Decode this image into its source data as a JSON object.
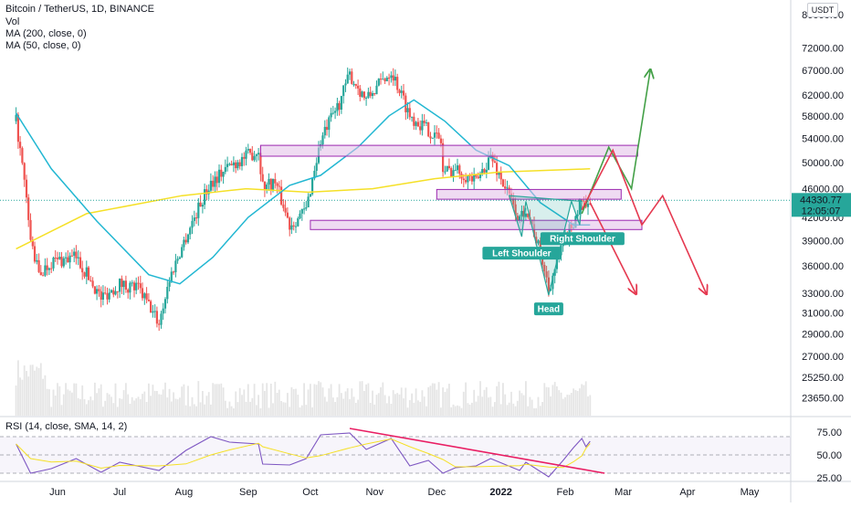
{
  "header": {
    "title": "Bitcoin / TetherUS, 1D, BINANCE",
    "vol": "Vol",
    "ma200": "MA (200, close, 0)",
    "ma50": "MA (50, close, 0)",
    "rsi": "RSI (14, close, SMA, 14, 2)",
    "currency": "USDT"
  },
  "price_badge": {
    "price": "44330.77",
    "countdown": "12:05:07"
  },
  "colors": {
    "up": "#26a69a",
    "down": "#ef5350",
    "ma50": "#22b7d2",
    "ma200": "#f5e027",
    "zone_fill": "#e1bee7",
    "zone_stroke": "#9c27b0",
    "bull_path": "#43a047",
    "bear_path": "#e53950",
    "pattern_fill": "#26a69a",
    "rsi_line": "#7e57c2",
    "rsi_trend": "#e91e63"
  },
  "pattern_labels": {
    "left_shoulder": "Left Shoulder",
    "head": "Head",
    "right_shoulder": "Right Shoulder"
  },
  "chart_data": {
    "type": "candlestick",
    "title": "Bitcoin / TetherUS, 1D, BINANCE",
    "price_axis": {
      "scale": "log",
      "ticks": [
        {
          "v": 80000,
          "label": "80000.00"
        },
        {
          "v": 72000,
          "label": "72000.00"
        },
        {
          "v": 67000,
          "label": "67000.00"
        },
        {
          "v": 62000,
          "label": "62000.00"
        },
        {
          "v": 58000,
          "label": "58000.00"
        },
        {
          "v": 54000,
          "label": "54000.00"
        },
        {
          "v": 50000,
          "label": "50000.00"
        },
        {
          "v": 46000,
          "label": "46000.00"
        },
        {
          "v": 42000,
          "label": "42000.00"
        },
        {
          "v": 39000,
          "label": "39000.00"
        },
        {
          "v": 36000,
          "label": "36000.00"
        },
        {
          "v": 33000,
          "label": "33000.00"
        },
        {
          "v": 31000,
          "label": "31000.00"
        },
        {
          "v": 29000,
          "label": "29000.00"
        },
        {
          "v": 27000,
          "label": "27000.00"
        },
        {
          "v": 25250,
          "label": "25250.00"
        },
        {
          "v": 23650,
          "label": "23650.00"
        }
      ]
    },
    "time_axis": {
      "ticks": [
        {
          "date": "2021-06-01",
          "label": "Jun"
        },
        {
          "date": "2021-07-01",
          "label": "Jul"
        },
        {
          "date": "2021-08-01",
          "label": "Aug"
        },
        {
          "date": "2021-09-01",
          "label": "Sep"
        },
        {
          "date": "2021-10-01",
          "label": "Oct"
        },
        {
          "date": "2021-11-01",
          "label": "Nov"
        },
        {
          "date": "2021-12-01",
          "label": "Dec"
        },
        {
          "date": "2022-01-01",
          "label": "2022"
        },
        {
          "date": "2022-02-01",
          "label": "Feb"
        },
        {
          "date": "2022-03-01",
          "label": "Mar"
        },
        {
          "date": "2022-04-01",
          "label": "Apr"
        },
        {
          "date": "2022-05-01",
          "label": "May"
        }
      ]
    },
    "last_price": 44330.77,
    "price_path": [
      [
        "2021-05-12",
        57000
      ],
      [
        "2021-05-19",
        39000
      ],
      [
        "2021-05-23",
        35000
      ],
      [
        "2021-05-29",
        36500
      ],
      [
        "2021-06-10",
        37000
      ],
      [
        "2021-06-22",
        32500
      ],
      [
        "2021-07-01",
        34000
      ],
      [
        "2021-07-10",
        33500
      ],
      [
        "2021-07-20",
        30000
      ],
      [
        "2021-07-25",
        34500
      ],
      [
        "2021-08-02",
        39500
      ],
      [
        "2021-08-14",
        47000
      ],
      [
        "2021-08-23",
        49500
      ],
      [
        "2021-09-06",
        52000
      ],
      [
        "2021-09-08",
        46500
      ],
      [
        "2021-09-14",
        47000
      ],
      [
        "2021-09-21",
        41000
      ],
      [
        "2021-09-29",
        43000
      ],
      [
        "2021-10-06",
        53500
      ],
      [
        "2021-10-15",
        60500
      ],
      [
        "2021-10-20",
        66000
      ],
      [
        "2021-10-28",
        61000
      ],
      [
        "2021-11-09",
        67000
      ],
      [
        "2021-11-18",
        58000
      ],
      [
        "2021-11-27",
        55500
      ],
      [
        "2021-12-03",
        53500
      ],
      [
        "2021-12-04",
        48500
      ],
      [
        "2021-12-10",
        49000
      ],
      [
        "2021-12-20",
        47000
      ],
      [
        "2021-12-27",
        51000
      ],
      [
        "2022-01-01",
        47500
      ],
      [
        "2022-01-10",
        41500
      ],
      [
        "2022-01-13",
        43500
      ],
      [
        "2022-01-21",
        36500
      ],
      [
        "2022-01-24",
        33500
      ],
      [
        "2022-01-31",
        38500
      ],
      [
        "2022-02-05",
        41500
      ],
      [
        "2022-02-09",
        44500
      ],
      [
        "2022-02-11",
        42500
      ],
      [
        "2022-02-13",
        44330.77
      ]
    ],
    "ma50": [
      [
        "2021-05-12",
        58500
      ],
      [
        "2021-05-29",
        49000
      ],
      [
        "2021-06-20",
        41500
      ],
      [
        "2021-07-15",
        35000
      ],
      [
        "2021-07-30",
        34000
      ],
      [
        "2021-08-15",
        37000
      ],
      [
        "2021-09-01",
        42000
      ],
      [
        "2021-09-21",
        46500
      ],
      [
        "2021-10-06",
        48000
      ],
      [
        "2021-10-24",
        52500
      ],
      [
        "2021-11-08",
        58000
      ],
      [
        "2021-11-20",
        61000
      ],
      [
        "2021-12-05",
        57000
      ],
      [
        "2021-12-20",
        52000
      ],
      [
        "2022-01-05",
        49500
      ],
      [
        "2022-01-20",
        44000
      ],
      [
        "2022-02-05",
        41000
      ],
      [
        "2022-02-13",
        41000
      ]
    ],
    "ma200": [
      [
        "2021-05-12",
        38000
      ],
      [
        "2021-06-15",
        42500
      ],
      [
        "2021-07-31",
        45000
      ],
      [
        "2021-08-31",
        46000
      ],
      [
        "2021-09-30",
        45500
      ],
      [
        "2021-10-31",
        46000
      ],
      [
        "2021-11-30",
        47500
      ],
      [
        "2021-12-31",
        48500
      ],
      [
        "2022-02-13",
        49000
      ]
    ],
    "zones": [
      {
        "from": "2021-09-07",
        "to": "2022-03-08",
        "low": 51000,
        "high": 52800
      },
      {
        "from": "2021-12-01",
        "to": "2022-02-28",
        "low": 44500,
        "high": 45900
      },
      {
        "from": "2021-10-01",
        "to": "2022-03-10",
        "low": 40400,
        "high": 41600
      }
    ],
    "head_and_shoulders": [
      [
        "2022-01-05",
        45000
      ],
      [
        "2022-01-11",
        39500
      ],
      [
        "2022-01-13",
        44200
      ],
      [
        "2022-01-24",
        32800
      ],
      [
        "2022-02-04",
        44200
      ],
      [
        "2022-02-08",
        41000
      ],
      [
        "2022-02-09",
        44200
      ]
    ],
    "projection_bullish": [
      [
        "2022-02-09",
        42500
      ],
      [
        "2022-02-22",
        52500
      ],
      [
        "2022-03-05",
        46000
      ],
      [
        "2022-03-14",
        67000
      ]
    ],
    "projection_bearish": [
      [
        "2022-02-09",
        43000
      ],
      [
        "2022-02-24",
        52000
      ],
      [
        "2022-03-10",
        41000
      ],
      [
        "2022-03-20",
        45000
      ],
      [
        "2022-04-10",
        33000
      ]
    ],
    "projection_bearish_alt": [
      [
        "2022-02-13",
        44000
      ],
      [
        "2022-03-07",
        33000
      ]
    ],
    "rsi": {
      "axis_ticks": [
        {
          "v": 75,
          "label": "75.00"
        },
        {
          "v": 50,
          "label": "50.00"
        },
        {
          "v": 25,
          "label": "25.00"
        }
      ],
      "band": [
        30,
        70
      ],
      "values": [
        [
          "2021-05-12",
          62
        ],
        [
          "2021-05-19",
          30
        ],
        [
          "2021-05-29",
          35
        ],
        [
          "2021-06-10",
          46
        ],
        [
          "2021-06-22",
          31
        ],
        [
          "2021-07-01",
          42
        ],
        [
          "2021-07-20",
          33
        ],
        [
          "2021-08-02",
          55
        ],
        [
          "2021-08-14",
          70
        ],
        [
          "2021-08-23",
          64
        ],
        [
          "2021-09-06",
          62
        ],
        [
          "2021-09-08",
          40
        ],
        [
          "2021-09-21",
          39
        ],
        [
          "2021-09-29",
          46
        ],
        [
          "2021-10-06",
          72
        ],
        [
          "2021-10-20",
          74
        ],
        [
          "2021-10-28",
          56
        ],
        [
          "2021-11-09",
          68
        ],
        [
          "2021-11-18",
          38
        ],
        [
          "2021-11-27",
          44
        ],
        [
          "2021-12-04",
          30
        ],
        [
          "2021-12-10",
          36
        ],
        [
          "2021-12-20",
          38
        ],
        [
          "2021-12-27",
          46
        ],
        [
          "2022-01-10",
          33
        ],
        [
          "2022-01-13",
          42
        ],
        [
          "2022-01-24",
          26
        ],
        [
          "2022-01-31",
          44
        ],
        [
          "2022-02-05",
          58
        ],
        [
          "2022-02-09",
          68
        ],
        [
          "2022-02-11",
          59
        ],
        [
          "2022-02-13",
          65
        ]
      ],
      "trendline": [
        [
          "2021-10-20",
          79
        ],
        [
          "2022-02-20",
          30
        ]
      ]
    }
  }
}
